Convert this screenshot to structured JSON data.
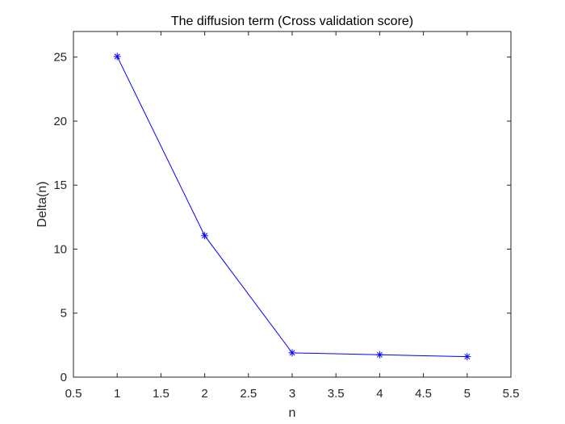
{
  "chart_data": {
    "type": "line",
    "title": "The diffusion term (Cross validation score)",
    "xlabel": "n",
    "ylabel": "Delta(n)",
    "x": [
      1,
      2,
      3,
      4,
      5
    ],
    "series": [
      {
        "values": [
          25.05,
          11.05,
          1.9,
          1.75,
          1.6
        ],
        "color": "#0000ff",
        "marker": "asterisk"
      }
    ],
    "xlim": [
      0.5,
      5.5
    ],
    "ylim": [
      0,
      27
    ],
    "xticks": [
      0.5,
      1,
      1.5,
      2,
      2.5,
      3,
      3.5,
      4,
      4.5,
      5,
      5.5
    ],
    "xtick_labels": [
      "0.5",
      "1",
      "1.5",
      "2",
      "2.5",
      "3",
      "3.5",
      "4",
      "4.5",
      "5",
      "5.5"
    ],
    "yticks": [
      0,
      5,
      10,
      15,
      20,
      25
    ],
    "ytick_labels": [
      "0",
      "5",
      "10",
      "15",
      "20",
      "25"
    ],
    "grid": false,
    "box": true
  }
}
